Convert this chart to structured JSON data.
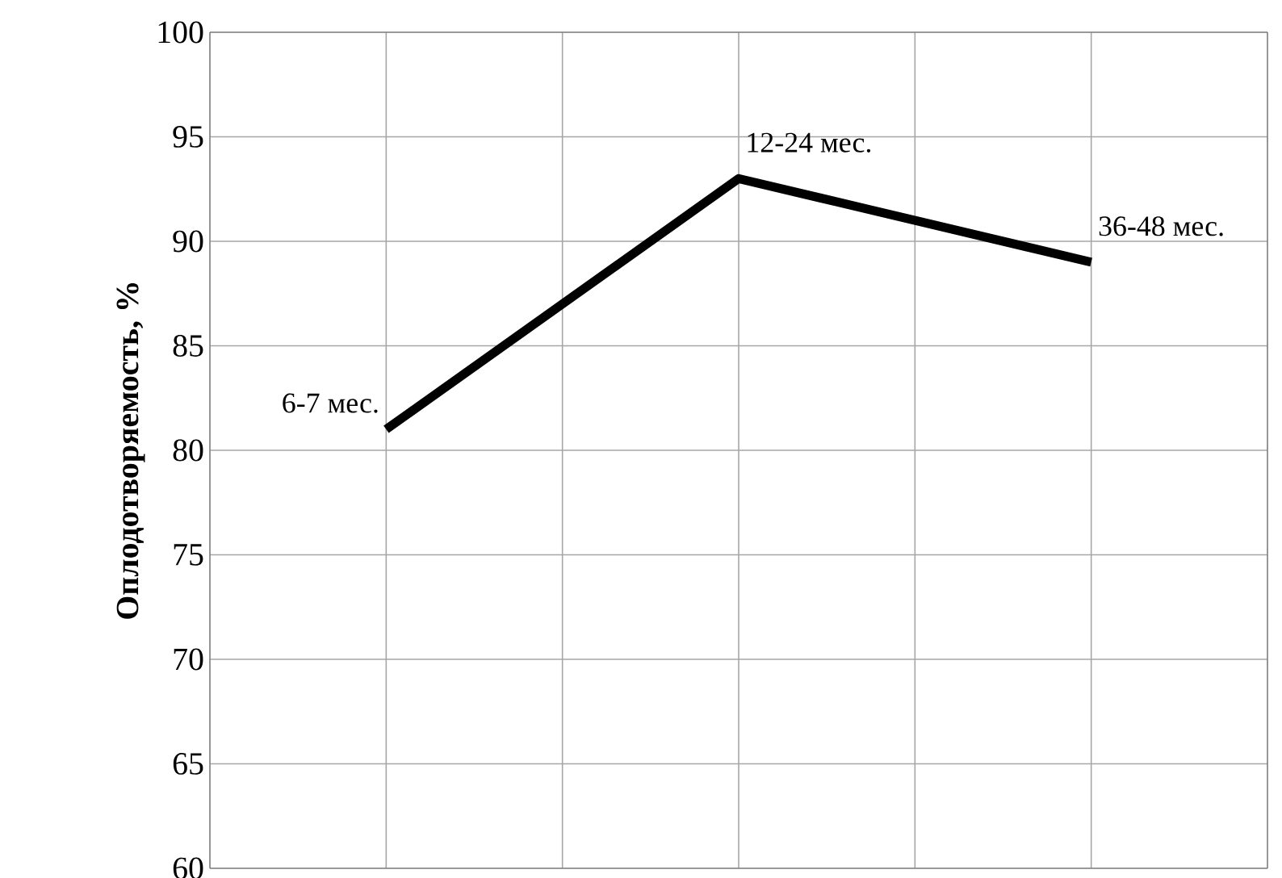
{
  "chart_data": {
    "type": "line",
    "ylabel": "Оплодотворяемость, %",
    "categories": [
      null,
      null,
      null
    ],
    "values": [
      81,
      93,
      89
    ],
    "color": "#000000",
    "ylim": [
      60,
      100
    ],
    "yticks": [
      60,
      65,
      70,
      75,
      80,
      85,
      90,
      95,
      100
    ],
    "grid": true,
    "marker": "none",
    "line_style": "solid",
    "annotations": [
      "6-7 мес.",
      "12-24  мес.",
      "36-48  мес."
    ]
  }
}
